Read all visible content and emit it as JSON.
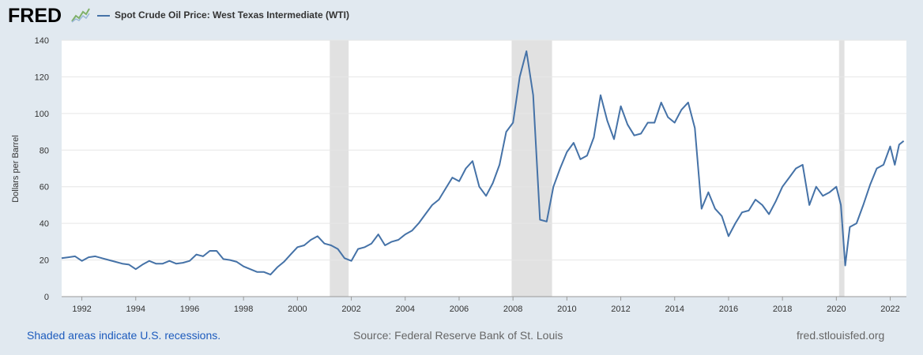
{
  "logo": {
    "text": "FRED"
  },
  "chart_data": {
    "type": "line",
    "title": "Spot Crude Oil Price: West Texas Intermediate (WTI)",
    "ylabel": "Dollars per Barrel",
    "xlabel": "",
    "ylim": [
      0,
      140
    ],
    "xlim": [
      1991.25,
      2022.6
    ],
    "y_ticks": [
      "0",
      "20",
      "40",
      "60",
      "80",
      "100",
      "120",
      "140"
    ],
    "x_ticks": [
      "1992",
      "1994",
      "1996",
      "1998",
      "2000",
      "2002",
      "2004",
      "2006",
      "2008",
      "2010",
      "2012",
      "2014",
      "2016",
      "2018",
      "2020",
      "2022"
    ],
    "grid": true,
    "legend_position": "top-left",
    "line_color": "#4572a7",
    "recession_color": "#e1e1e1",
    "recessions": [
      [
        2001.2,
        2001.9
      ],
      [
        2007.95,
        2009.45
      ],
      [
        2020.1,
        2020.3
      ]
    ],
    "series": [
      {
        "name": "Spot Crude Oil Price: West Texas Intermediate (WTI)",
        "x": [
          1991.25,
          1991.5,
          1991.75,
          1992.0,
          1992.25,
          1992.5,
          1992.75,
          1993.0,
          1993.25,
          1993.5,
          1993.75,
          1994.0,
          1994.25,
          1994.5,
          1994.75,
          1995.0,
          1995.25,
          1995.5,
          1995.75,
          1996.0,
          1996.25,
          1996.5,
          1996.75,
          1997.0,
          1997.25,
          1997.5,
          1997.75,
          1998.0,
          1998.25,
          1998.5,
          1998.75,
          1999.0,
          1999.25,
          1999.5,
          1999.75,
          2000.0,
          2000.25,
          2000.5,
          2000.75,
          2001.0,
          2001.25,
          2001.5,
          2001.75,
          2002.0,
          2002.25,
          2002.5,
          2002.75,
          2003.0,
          2003.25,
          2003.5,
          2003.75,
          2004.0,
          2004.25,
          2004.5,
          2004.75,
          2005.0,
          2005.25,
          2005.5,
          2005.75,
          2006.0,
          2006.25,
          2006.5,
          2006.75,
          2007.0,
          2007.25,
          2007.5,
          2007.75,
          2008.0,
          2008.25,
          2008.5,
          2008.75,
          2009.0,
          2009.25,
          2009.5,
          2009.75,
          2010.0,
          2010.25,
          2010.5,
          2010.75,
          2011.0,
          2011.25,
          2011.5,
          2011.75,
          2012.0,
          2012.25,
          2012.5,
          2012.75,
          2013.0,
          2013.25,
          2013.5,
          2013.75,
          2014.0,
          2014.25,
          2014.5,
          2014.75,
          2015.0,
          2015.25,
          2015.5,
          2015.75,
          2016.0,
          2016.25,
          2016.5,
          2016.75,
          2017.0,
          2017.25,
          2017.5,
          2017.75,
          2018.0,
          2018.25,
          2018.5,
          2018.75,
          2019.0,
          2019.25,
          2019.5,
          2019.75,
          2020.0,
          2020.17,
          2020.33,
          2020.5,
          2020.75,
          2021.0,
          2021.25,
          2021.5,
          2021.75,
          2022.0,
          2022.17,
          2022.33,
          2022.5
        ],
        "values": [
          21,
          21.5,
          22,
          19.5,
          21.5,
          22,
          21,
          20,
          19,
          18,
          17.5,
          15,
          17.5,
          19.5,
          18,
          18,
          19.5,
          18,
          18.5,
          19.5,
          23,
          22,
          25,
          25,
          20.5,
          20,
          19,
          16.5,
          15,
          13.5,
          13.5,
          12,
          16,
          19,
          23,
          27,
          28,
          31,
          33,
          29,
          28,
          26,
          21,
          19.5,
          26,
          27,
          29,
          34,
          28,
          30,
          31,
          34,
          36,
          40,
          45,
          50,
          53,
          59,
          65,
          63,
          70,
          74,
          60,
          55,
          62,
          72,
          90,
          95,
          120,
          134,
          110,
          42,
          41,
          60,
          70,
          79,
          84,
          75,
          77,
          87,
          110,
          96,
          86,
          104,
          94,
          88,
          89,
          95,
          95,
          106,
          98,
          95,
          102,
          106,
          92,
          48,
          57,
          48,
          44,
          33,
          40,
          46,
          47,
          53,
          50,
          45,
          52,
          60,
          65,
          70,
          72,
          50,
          60,
          55,
          57,
          60,
          50,
          17,
          38,
          40,
          50,
          61,
          70,
          72,
          82,
          72,
          83,
          85
        ]
      }
    ]
  },
  "footer": {
    "recession_note": "Shaded areas indicate U.S. recessions.",
    "source": "Source: Federal Reserve Bank of St. Louis",
    "site": "fred.stlouisfed.org"
  }
}
